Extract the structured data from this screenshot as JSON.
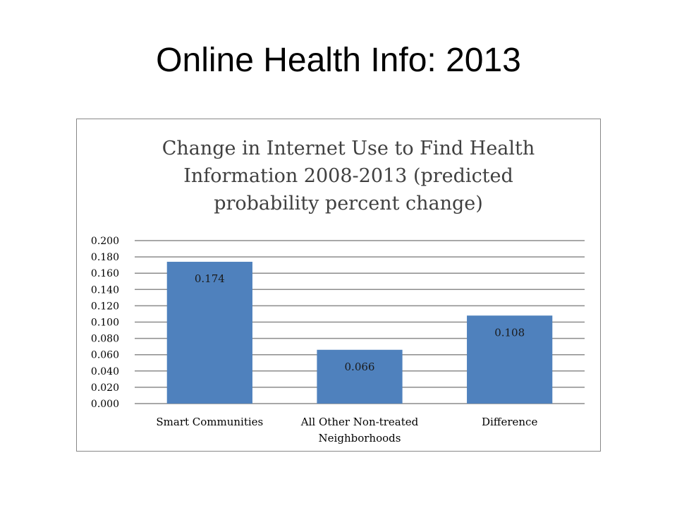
{
  "slide": {
    "title": "Online Health Info:  2013"
  },
  "chart_data": {
    "type": "bar",
    "title_lines": [
      "Change in Internet Use to Find Health",
      "Information 2008-2013 (predicted",
      "probability percent change)"
    ],
    "categories": [
      [
        "Smart Communities"
      ],
      [
        "All Other Non-treated",
        "Neighborhoods"
      ],
      [
        "Difference"
      ]
    ],
    "values": [
      0.174,
      0.066,
      0.108
    ],
    "data_labels": [
      "0.174",
      "0.066",
      "0.108"
    ],
    "ylim": [
      0,
      0.2
    ],
    "y_ticks": [
      "0.000",
      "0.020",
      "0.040",
      "0.060",
      "0.080",
      "0.100",
      "0.120",
      "0.140",
      "0.160",
      "0.180",
      "0.200"
    ],
    "xlabel": "",
    "ylabel": "",
    "grid": true,
    "legend": "none",
    "bar_color": "#4F81BD",
    "grid_color": "#8C8C8C"
  }
}
